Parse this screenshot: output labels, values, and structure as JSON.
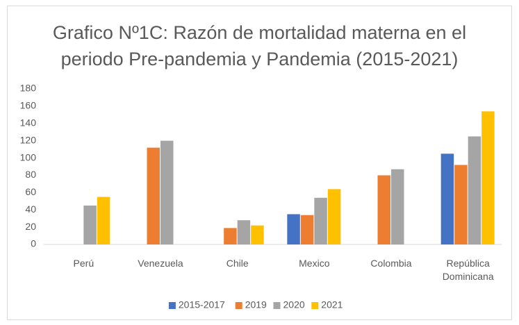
{
  "chart_data": {
    "type": "bar",
    "title": "Grafico Nº1C: Razón de mortalidad materna en el periodo Pre-pandemia y Pandemia (2015-2021)",
    "categories": [
      "Perú",
      "Venezuela",
      "Chile",
      "Mexico",
      "Colombia",
      "República Dominicana"
    ],
    "series": [
      {
        "name": "2015-2017",
        "color": "#4472c4",
        "values": [
          null,
          null,
          null,
          35,
          null,
          105
        ]
      },
      {
        "name": "2019",
        "color": "#ed7d31",
        "values": [
          null,
          112,
          19,
          34,
          80,
          92
        ]
      },
      {
        "name": "2020",
        "color": "#a5a5a5",
        "values": [
          45,
          120,
          28,
          54,
          87,
          125
        ]
      },
      {
        "name": "2021",
        "color": "#ffc000",
        "values": [
          55,
          null,
          22,
          64,
          null,
          154
        ]
      }
    ],
    "ylim": [
      0,
      180
    ],
    "yticks": [
      0,
      20,
      40,
      60,
      80,
      100,
      120,
      140,
      160,
      180
    ],
    "grid": false,
    "legend": "bottom"
  }
}
